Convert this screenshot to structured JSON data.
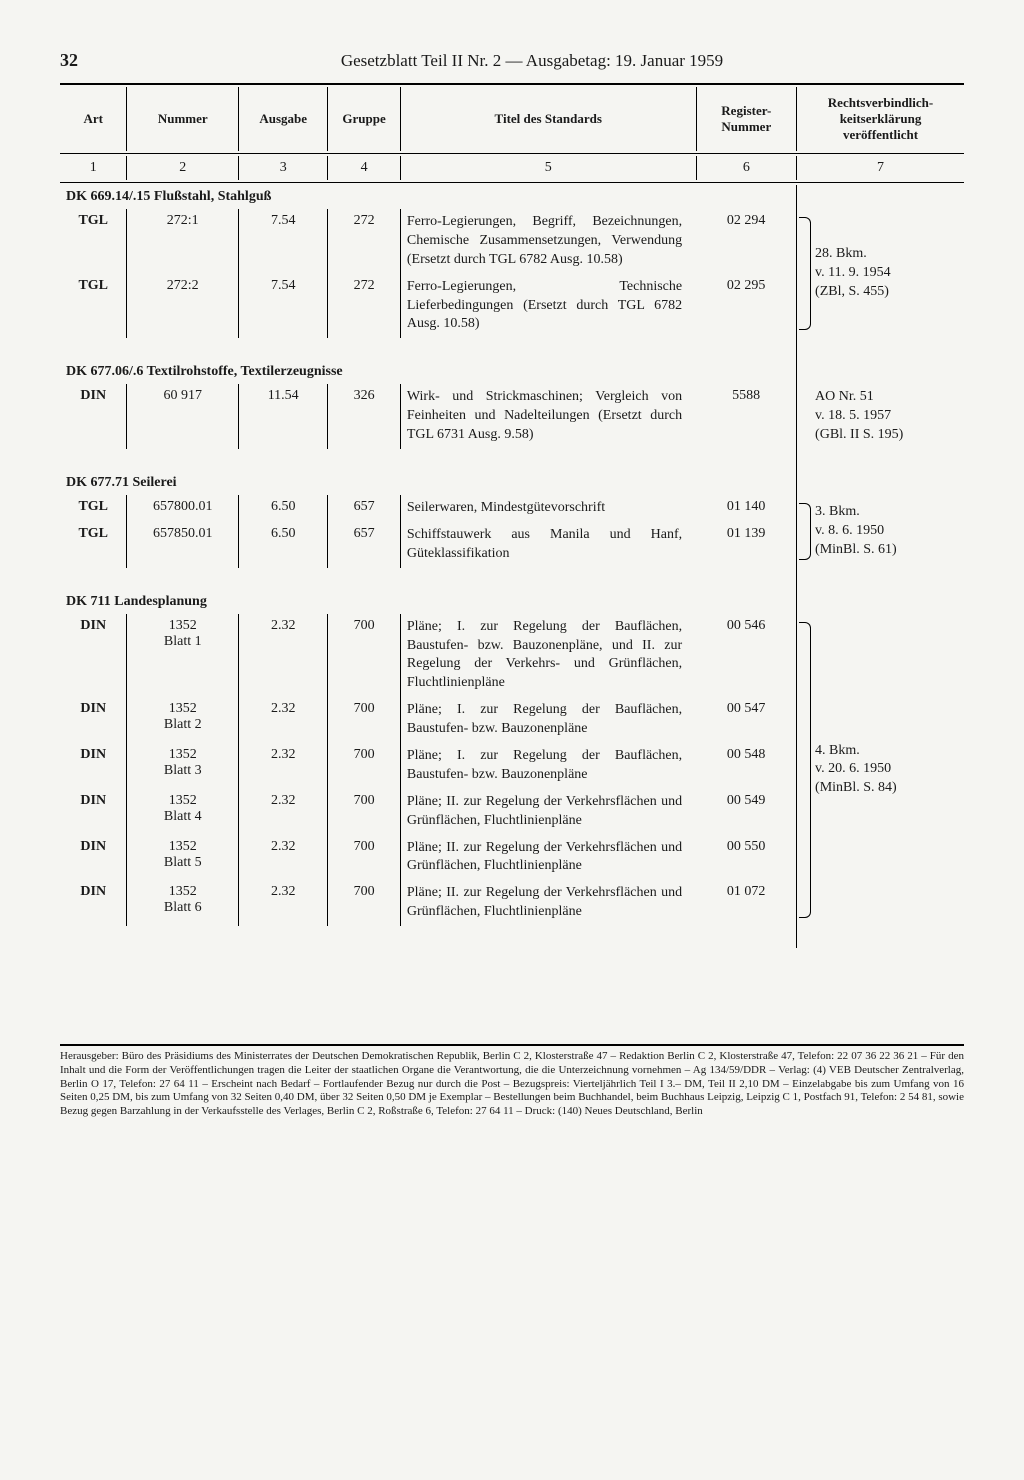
{
  "page": {
    "number": "32",
    "title": "Gesetzblatt Teil II Nr. 2 — Ausgabetag: 19. Januar 1959"
  },
  "columns": {
    "c1": "Art",
    "c2": "Nummer",
    "c3": "Ausgabe",
    "c4": "Gruppe",
    "c5": "Titel des Standards",
    "c6": "Register-Nummer",
    "c7": "Rechtsverbindlich-keitserklärung veröffentlicht"
  },
  "colIndex": {
    "c1": "1",
    "c2": "2",
    "c3": "3",
    "c4": "4",
    "c5": "5",
    "c6": "6",
    "c7": "7"
  },
  "sections": [
    {
      "heading": "DK 669.14/.15 Flußstahl, Stahlguß",
      "note7": "28. Bkm.\nv. 11. 9. 1954\n(ZBl, S. 455)",
      "rows": [
        {
          "art": "TGL",
          "num": "272:1",
          "ausg": "7.54",
          "grp": "272",
          "titel": "Ferro-Legierungen, Begriff, Bezeichnungen, Chemische Zusammensetzungen, Verwendung (Ersetzt durch TGL 6782 Ausg. 10.58)",
          "reg": "02 294"
        },
        {
          "art": "TGL",
          "num": "272:2",
          "ausg": "7.54",
          "grp": "272",
          "titel": "Ferro-Legierungen, Technische Lieferbedingungen (Ersetzt durch TGL 6782 Ausg. 10.58)",
          "reg": "02 295"
        }
      ]
    },
    {
      "heading": "DK 677.06/.6 Textilrohstoffe, Textilerzeugnisse",
      "note7": "AO Nr. 51\nv. 18. 5. 1957\n(GBl. II S. 195)",
      "rows": [
        {
          "art": "DIN",
          "num": "60 917",
          "ausg": "11.54",
          "grp": "326",
          "titel": "Wirk- und Strickmaschinen; Vergleich von Feinheiten und Nadelteilungen (Ersetzt durch TGL 6731 Ausg. 9.58)",
          "reg": "5588"
        }
      ]
    },
    {
      "heading": "DK 677.71 Seilerei",
      "note7": "3. Bkm.\nv. 8. 6. 1950\n(MinBl. S. 61)",
      "rows": [
        {
          "art": "TGL",
          "num": "657800.01",
          "ausg": "6.50",
          "grp": "657",
          "titel": "Seilerwaren, Mindestgütevorschrift",
          "reg": "01 140"
        },
        {
          "art": "TGL",
          "num": "657850.01",
          "ausg": "6.50",
          "grp": "657",
          "titel": "Schiffstauwerk aus Manila und Hanf, Güteklassifikation",
          "reg": "01 139"
        }
      ]
    },
    {
      "heading": "DK 711 Landesplanung",
      "note7": "4. Bkm.\nv. 20. 6. 1950\n(MinBl. S. 84)",
      "rows": [
        {
          "art": "DIN",
          "num": "1352\nBlatt 1",
          "ausg": "2.32",
          "grp": "700",
          "titel": "Pläne; I. zur Regelung der Bauflächen, Baustufen- bzw. Bauzonenpläne, und II. zur Regelung der Verkehrs- und Grünflächen, Fluchtlinienpläne",
          "reg": "00 546"
        },
        {
          "art": "DIN",
          "num": "1352\nBlatt 2",
          "ausg": "2.32",
          "grp": "700",
          "titel": "Pläne; I. zur Regelung der Bauflächen, Baustufen- bzw. Bauzonenpläne",
          "reg": "00 547"
        },
        {
          "art": "DIN",
          "num": "1352\nBlatt 3",
          "ausg": "2.32",
          "grp": "700",
          "titel": "Pläne; I. zur Regelung der Bauflächen, Baustufen- bzw. Bauzonenpläne",
          "reg": "00 548"
        },
        {
          "art": "DIN",
          "num": "1352\nBlatt 4",
          "ausg": "2.32",
          "grp": "700",
          "titel": "Pläne; II. zur Regelung der Verkehrsflächen und Grünflächen, Fluchtlinienpläne",
          "reg": "00 549"
        },
        {
          "art": "DIN",
          "num": "1352\nBlatt 5",
          "ausg": "2.32",
          "grp": "700",
          "titel": "Pläne; II. zur Regelung der Verkehrsflächen und Grünflächen, Fluchtlinienpläne",
          "reg": "00 550"
        },
        {
          "art": "DIN",
          "num": "1352\nBlatt 6",
          "ausg": "2.32",
          "grp": "700",
          "titel": "Pläne; II. zur Regelung der Verkehrsflächen und Grünflächen, Fluchtlinienpläne",
          "reg": "01 072"
        }
      ]
    }
  ],
  "footer": "Herausgeber: Büro des Präsidiums des Ministerrates der Deutschen Demokratischen Republik, Berlin C 2, Klosterstraße 47 – Redaktion Berlin C 2, Klosterstraße 47, Telefon: 22 07 36 22 36 21 – Für den Inhalt und die Form der Veröffentlichungen tragen die Leiter der staatlichen Organe die Verantwortung, die die Unterzeichnung vornehmen – Ag 134/59/DDR – Verlag: (4) VEB Deutscher Zentralverlag, Berlin O 17, Telefon: 27 64 11 – Erscheint nach Bedarf – Fortlaufender Bezug nur durch die Post – Bezugspreis: Vierteljährlich Teil I 3.– DM, Teil II 2,10 DM – Einzelabgabe bis zum Umfang von 16 Seiten 0,25 DM, bis zum Umfang von 32 Seiten 0,40 DM, über 32 Seiten 0,50 DM je Exemplar – Bestellungen beim Buchhandel, beim Buchhaus Leipzig, Leipzig C 1, Postfach 91, Telefon: 2 54 81, sowie Bezug gegen Barzahlung in der Verkaufsstelle des Verlages, Berlin C 2, Roßstraße 6, Telefon: 27 64 11 – Druck: (140) Neues Deutschland, Berlin"
}
